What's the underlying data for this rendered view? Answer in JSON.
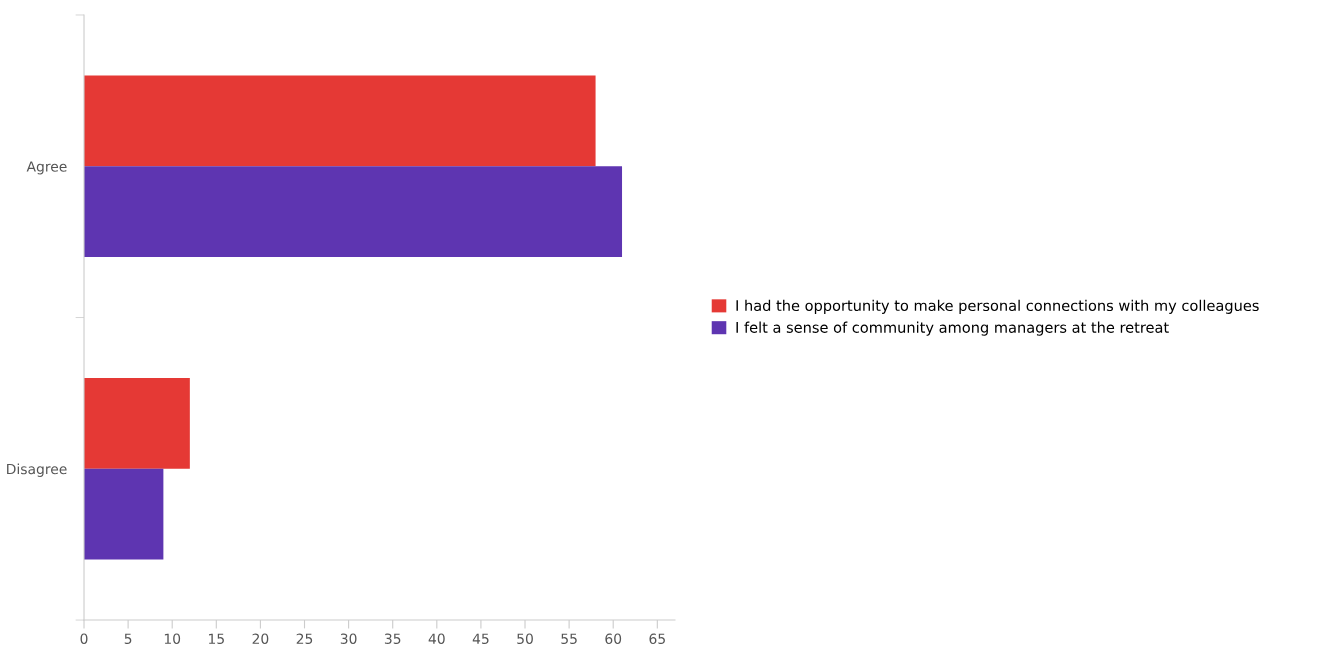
{
  "chart_data": {
    "type": "bar",
    "orientation": "horizontal",
    "categories": [
      "Agree",
      "Disagree"
    ],
    "series": [
      {
        "name": "I had the opportunity to make personal connections with my colleagues",
        "color": "#e53935",
        "values": [
          58,
          12
        ]
      },
      {
        "name": "I felt a sense of community among managers at the retreat",
        "color": "#5e35b1",
        "values": [
          61,
          9
        ]
      }
    ],
    "xlim": [
      0,
      67
    ],
    "xticks": [
      0,
      5,
      10,
      15,
      20,
      25,
      30,
      35,
      40,
      45,
      50,
      55,
      60,
      65
    ],
    "grid": false,
    "legend": "right"
  }
}
